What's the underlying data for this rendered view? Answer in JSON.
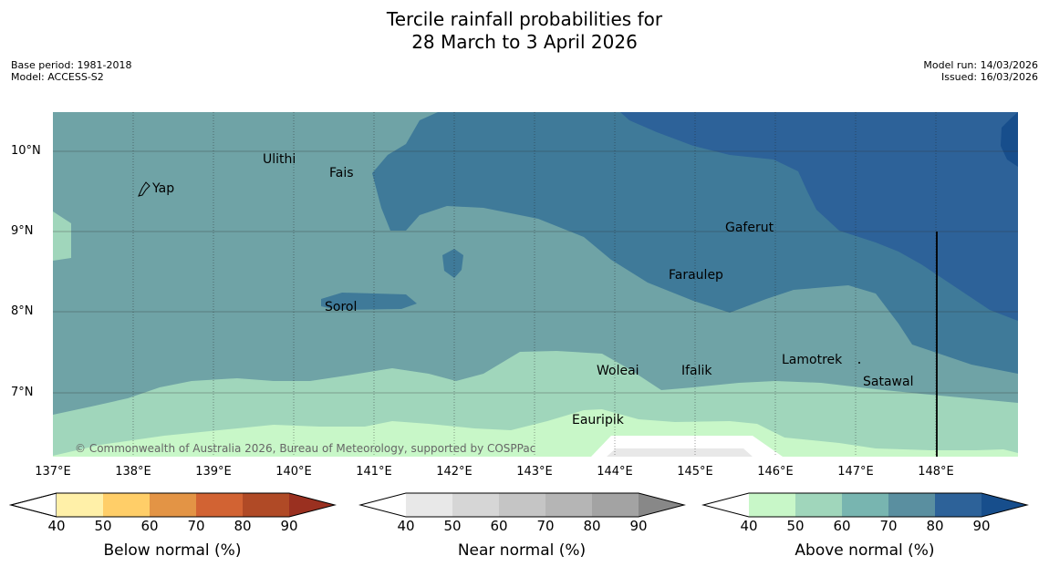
{
  "title": {
    "line1": "Tercile rainfall probabilities for",
    "line2": "28 March to 3 April 2026"
  },
  "meta_left": {
    "base_period": "Base period: 1981-2018",
    "model": "Model: ACCESS-S2"
  },
  "meta_right": {
    "model_run": "Model run: 14/03/2026",
    "issued": "Issued: 16/03/2026"
  },
  "map": {
    "lat_labels": [
      "10°N",
      "9°N",
      "8°N",
      "7°N"
    ],
    "lon_labels": [
      "137°E",
      "138°E",
      "139°E",
      "140°E",
      "141°E",
      "142°E",
      "143°E",
      "144°E",
      "145°E",
      "146°E",
      "147°E",
      "148°E"
    ],
    "places": [
      {
        "name": "Yap"
      },
      {
        "name": "Ulithi"
      },
      {
        "name": "Fais"
      },
      {
        "name": "Sorol"
      },
      {
        "name": "Gaferut"
      },
      {
        "name": "Faraulep"
      },
      {
        "name": "Woleai"
      },
      {
        "name": "Ifalik"
      },
      {
        "name": "Lamotrek"
      },
      {
        "name": "Satawal"
      },
      {
        "name": "Eauripik"
      }
    ],
    "copyright": "© Commonwealth of Australia 2026, Bureau of Meteorology, supported by COSPPac",
    "colors": {
      "above_40_50": "#c8f7c8",
      "above_50_60": "#a0d6bb",
      "above_60_70": "#6fa3a6",
      "above_70_80": "#3f7a99",
      "above_80_90": "#2d6299",
      "above_90": "#174e8c",
      "near_40_50": "#e8e8e8"
    }
  },
  "colorbars": [
    {
      "label": "Below normal (%)",
      "ticks": [
        "40",
        "50",
        "60",
        "70",
        "80",
        "90"
      ],
      "colors": [
        "#fff0a8",
        "#ffce68",
        "#e39445",
        "#d26333",
        "#b04a26",
        "#9a3020"
      ]
    },
    {
      "label": "Near normal (%)",
      "ticks": [
        "40",
        "50",
        "60",
        "70",
        "80",
        "90"
      ],
      "colors": [
        "#e8e8e8",
        "#d6d6d6",
        "#c5c5c5",
        "#b5b5b5",
        "#a3a3a3",
        "#888888"
      ]
    },
    {
      "label": "Above normal (%)",
      "ticks": [
        "40",
        "50",
        "60",
        "70",
        "80",
        "90"
      ],
      "colors": [
        "#c8f7c8",
        "#a0d6bb",
        "#78b5b0",
        "#5a8fa0",
        "#2d6299",
        "#174e8c"
      ]
    }
  ]
}
